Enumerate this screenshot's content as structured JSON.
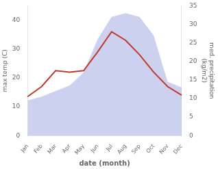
{
  "chart_data": {
    "type": "line",
    "categories": [
      "Jan",
      "Feb",
      "Mar",
      "Apr",
      "May",
      "Jun",
      "Jul",
      "Aug",
      "Sep",
      "Oct",
      "Nov",
      "Dec"
    ],
    "series": [
      {
        "type": "area",
        "color": "#b0b8e8",
        "axis": "y2",
        "values": [
          9.5,
          10.5,
          12.0,
          13.5,
          17.0,
          26.0,
          32.0,
          33.0,
          32.0,
          27.0,
          14.5,
          13.0
        ]
      },
      {
        "type": "line",
        "color": "#c0392b",
        "values": [
          13.5,
          17.0,
          22.5,
          22.0,
          22.5,
          29.0,
          36.0,
          33.0,
          28.0,
          22.0,
          17.0,
          14.0
        ]
      }
    ],
    "xlabel": "date (month)",
    "ylabel": "max temp (C)",
    "y2label": "med. precipitation\n(kg/m2)",
    "ylim": [
      0,
      45
    ],
    "yticks": [
      0,
      10,
      20,
      30,
      40
    ],
    "y2lim": [
      0,
      35
    ],
    "y2ticks": [
      0,
      5,
      10,
      15,
      20,
      25,
      30,
      35
    ],
    "grid": false
  }
}
